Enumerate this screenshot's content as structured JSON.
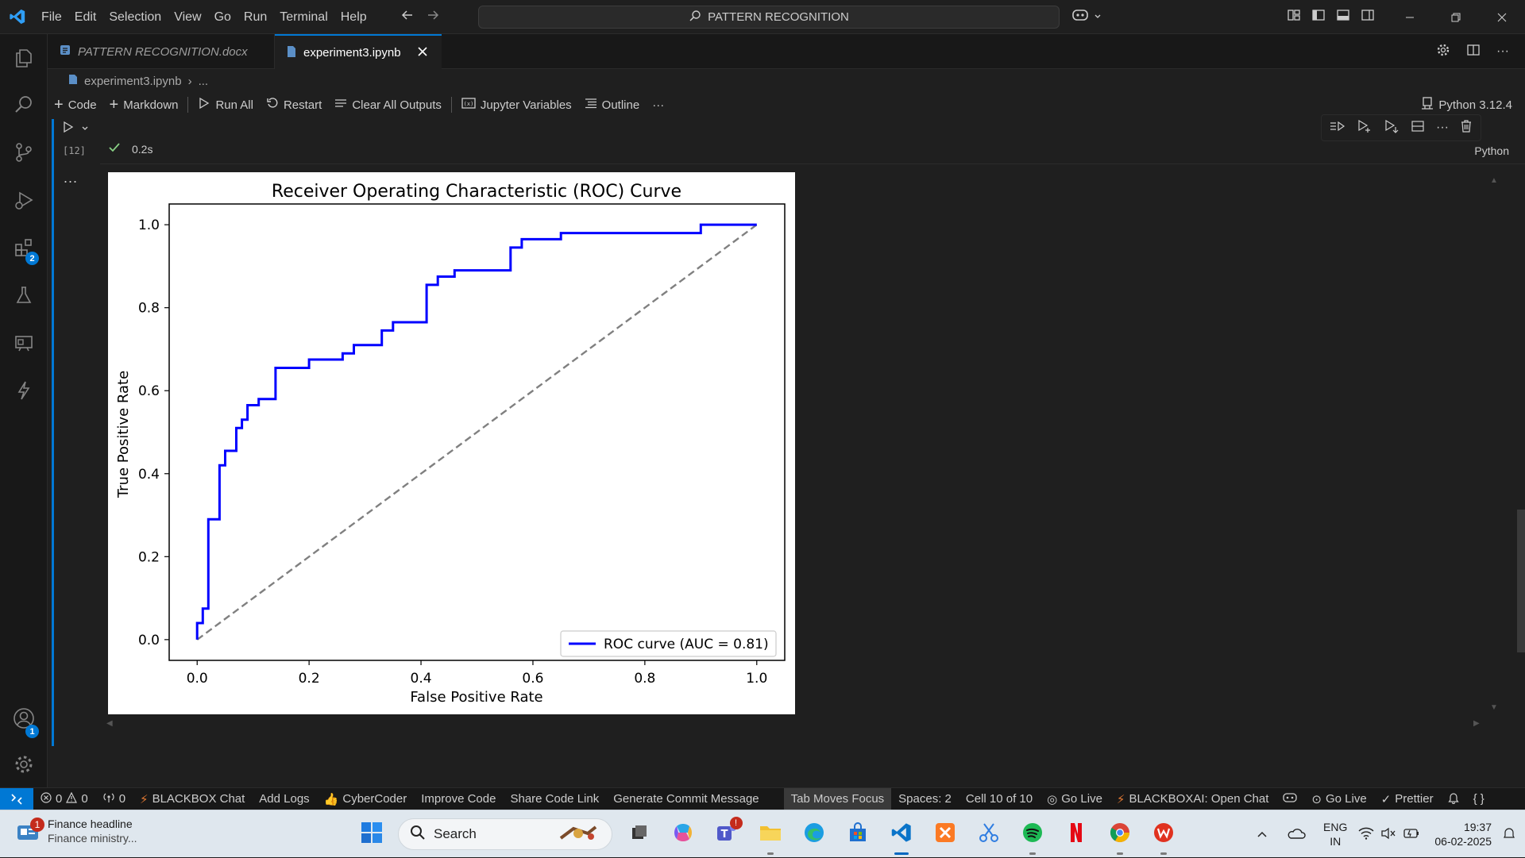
{
  "menu": [
    "File",
    "Edit",
    "Selection",
    "View",
    "Go",
    "Run",
    "Terminal",
    "Help"
  ],
  "command_center": {
    "label": "PATTERN RECOGNITION"
  },
  "tabs": [
    {
      "label": "PATTERN RECOGNITION.docx"
    },
    {
      "label": "experiment3.ipynb"
    }
  ],
  "breadcrumb": {
    "file": "experiment3.ipynb",
    "rest": "..."
  },
  "toolbar": {
    "code": "Code",
    "markdown": "Markdown",
    "run_all": "Run All",
    "restart": "Restart",
    "clear": "Clear All Outputs",
    "variables": "Jupyter Variables",
    "outline": "Outline",
    "more": "···"
  },
  "kernel": "Python 3.12.4",
  "cell": {
    "exec_count": "[12]",
    "duration": "0.2s",
    "language": "Python",
    "output_more": "..."
  },
  "activity_badges": {
    "extensions": "2",
    "accounts": "1"
  },
  "chart_data": {
    "type": "line",
    "title": "Receiver Operating Characteristic (ROC) Curve",
    "xlabel": "False Positive Rate",
    "ylabel": "True Positive Rate",
    "xlim": [
      -0.05,
      1.05
    ],
    "ylim": [
      -0.05,
      1.05
    ],
    "xticks": [
      "0.0",
      "0.2",
      "0.4",
      "0.6",
      "0.8",
      "1.0"
    ],
    "yticks": [
      "0.0",
      "0.2",
      "0.4",
      "0.6",
      "0.8",
      "1.0"
    ],
    "legend": "lower right",
    "series": [
      {
        "name": "ROC curve (AUC = 0.81)",
        "color": "#0000ff",
        "x": [
          0.0,
          0.0,
          0.01,
          0.01,
          0.02,
          0.02,
          0.04,
          0.04,
          0.05,
          0.05,
          0.07,
          0.07,
          0.08,
          0.08,
          0.09,
          0.09,
          0.11,
          0.11,
          0.14,
          0.14,
          0.2,
          0.2,
          0.26,
          0.26,
          0.28,
          0.28,
          0.33,
          0.33,
          0.35,
          0.35,
          0.41,
          0.41,
          0.43,
          0.43,
          0.46,
          0.46,
          0.56,
          0.56,
          0.58,
          0.58,
          0.65,
          0.65,
          0.9,
          0.9,
          1.0
        ],
        "y": [
          0.0,
          0.04,
          0.04,
          0.075,
          0.075,
          0.29,
          0.29,
          0.42,
          0.42,
          0.455,
          0.455,
          0.51,
          0.51,
          0.53,
          0.53,
          0.565,
          0.565,
          0.58,
          0.58,
          0.655,
          0.655,
          0.675,
          0.675,
          0.69,
          0.69,
          0.71,
          0.71,
          0.745,
          0.745,
          0.765,
          0.765,
          0.855,
          0.855,
          0.875,
          0.875,
          0.89,
          0.89,
          0.945,
          0.945,
          0.965,
          0.965,
          0.98,
          0.98,
          1.0,
          1.0
        ]
      },
      {
        "name": "",
        "color": "#808080",
        "style": "dashed",
        "x": [
          0.0,
          1.0
        ],
        "y": [
          0.0,
          1.0
        ]
      }
    ]
  },
  "status": {
    "errors": "0",
    "warnings": "0",
    "ports": "0",
    "items": [
      "BLACKBOX Chat",
      "Add Logs",
      "CyberCoder",
      "Improve Code",
      "Share Code Link",
      "Generate Commit Message"
    ],
    "tab_focus": "Tab Moves Focus",
    "spaces": "Spaces: 2",
    "cell_pos": "Cell 10 of 10",
    "go_live": "Go Live",
    "blackbox_open": "BLACKBOXAI: Open Chat",
    "go_live2": "Go Live",
    "prettier": "Prettier"
  },
  "taskbar": {
    "news_title": "Finance headline",
    "news_sub": "Finance ministry...",
    "news_badge": "1",
    "search": "Search",
    "lang": "ENG",
    "region": "IN",
    "time": "19:37",
    "date": "06-02-2025"
  }
}
